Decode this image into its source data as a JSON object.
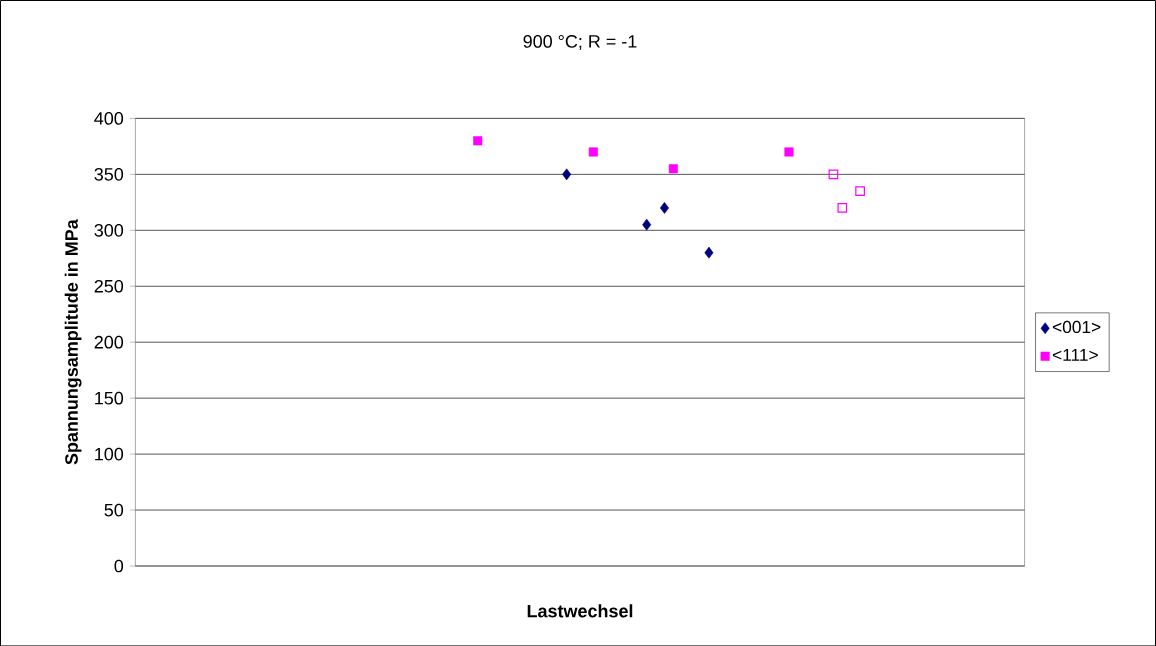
{
  "chart_data": {
    "type": "scatter",
    "title": "900 °C; R = -1",
    "xlabel": "Lastwechsel",
    "ylabel": "Spannungsamplitude in MPa",
    "categories": [
      null,
      null,
      null,
      null,
      null,
      null,
      null,
      null,
      null,
      null,
      null,
      null,
      null,
      null,
      null,
      null,
      null,
      null,
      null,
      null,
      null,
      null,
      null,
      null,
      null,
      null,
      null,
      null,
      null,
      null,
      null,
      null,
      null,
      null,
      null,
      null,
      null,
      null,
      null,
      null,
      null,
      null,
      null,
      null,
      null,
      null,
      null,
      null,
      null,
      null,
      null,
      null,
      null,
      null,
      null,
      null,
      null,
      null,
      null,
      null,
      null,
      null,
      null,
      null,
      null,
      null,
      null,
      null,
      null,
      null,
      null,
      null,
      null,
      null,
      null,
      null,
      null,
      null,
      null,
      null,
      null,
      null,
      null,
      null,
      null,
      null,
      null,
      null,
      null,
      null,
      null,
      null,
      null,
      null,
      null,
      null,
      null,
      null,
      null,
      null
    ],
    "ylim": [
      0,
      400
    ],
    "yticks": [
      0,
      50,
      100,
      150,
      200,
      250,
      300,
      350,
      400
    ],
    "grid": "y",
    "legend": "right",
    "series": [
      {
        "name": "<001>",
        "color": "#000080",
        "marker": "diamond",
        "values": [
          null,
          null,
          null,
          null,
          null,
          null,
          null,
          null,
          null,
          null,
          null,
          null,
          null,
          null,
          null,
          null,
          null,
          null,
          null,
          null,
          null,
          null,
          null,
          null,
          null,
          null,
          null,
          null,
          null,
          null,
          null,
          null,
          null,
          null,
          null,
          null,
          null,
          null,
          null,
          null,
          null,
          null,
          null,
          null,
          null,
          null,
          null,
          null,
          350,
          null,
          null,
          null,
          null,
          null,
          null,
          null,
          null,
          305,
          null,
          320,
          null,
          null,
          null,
          null,
          280,
          null,
          null,
          null,
          null,
          null,
          null,
          null,
          null,
          null,
          null,
          null,
          null,
          null,
          null,
          null,
          null,
          null,
          null,
          null,
          null,
          null,
          null,
          null,
          null,
          null,
          null,
          null,
          null,
          null,
          null,
          null,
          null,
          null,
          null,
          null
        ]
      },
      {
        "name": "<111>",
        "color": "#ff00ff",
        "marker": "square",
        "values": [
          null,
          null,
          null,
          null,
          null,
          null,
          null,
          null,
          null,
          null,
          null,
          null,
          null,
          null,
          null,
          null,
          null,
          null,
          null,
          null,
          null,
          null,
          null,
          null,
          null,
          null,
          null,
          null,
          null,
          null,
          null,
          null,
          null,
          null,
          null,
          null,
          null,
          null,
          380,
          null,
          null,
          null,
          null,
          null,
          null,
          null,
          null,
          null,
          null,
          null,
          null,
          370,
          null,
          null,
          null,
          null,
          null,
          null,
          null,
          null,
          355,
          null,
          null,
          null,
          null,
          null,
          null,
          null,
          null,
          null,
          null,
          null,
          null,
          370,
          null,
          null,
          null,
          null,
          null,
          null,
          null,
          null,
          null,
          null,
          null,
          null,
          null,
          null,
          null,
          null,
          null,
          null,
          null,
          null,
          null,
          null,
          null,
          null,
          null,
          null
        ]
      },
      {
        "color": "#ff00ff",
        "marker": "square",
        "values": [
          null,
          null,
          null,
          null,
          null,
          null,
          null,
          null,
          null,
          null,
          null,
          null,
          null,
          null,
          null,
          null,
          null,
          null,
          null,
          null,
          null,
          null,
          null,
          null,
          null,
          null,
          null,
          null,
          null,
          null,
          null,
          null,
          null,
          null,
          null,
          null,
          null,
          null,
          null,
          null,
          null,
          null,
          null,
          null,
          null,
          null,
          null,
          null,
          null,
          null,
          null,
          null,
          null,
          null,
          null,
          null,
          null,
          null,
          null,
          null,
          null,
          null,
          null,
          null,
          null,
          null,
          null,
          null,
          null,
          null,
          null,
          null,
          null,
          null,
          null,
          null,
          null,
          null,
          350,
          320,
          null,
          335,
          null,
          null,
          null,
          null,
          null,
          null,
          null,
          null,
          null,
          null,
          null,
          null,
          null,
          null,
          null,
          null,
          null,
          null
        ]
      }
    ]
  }
}
